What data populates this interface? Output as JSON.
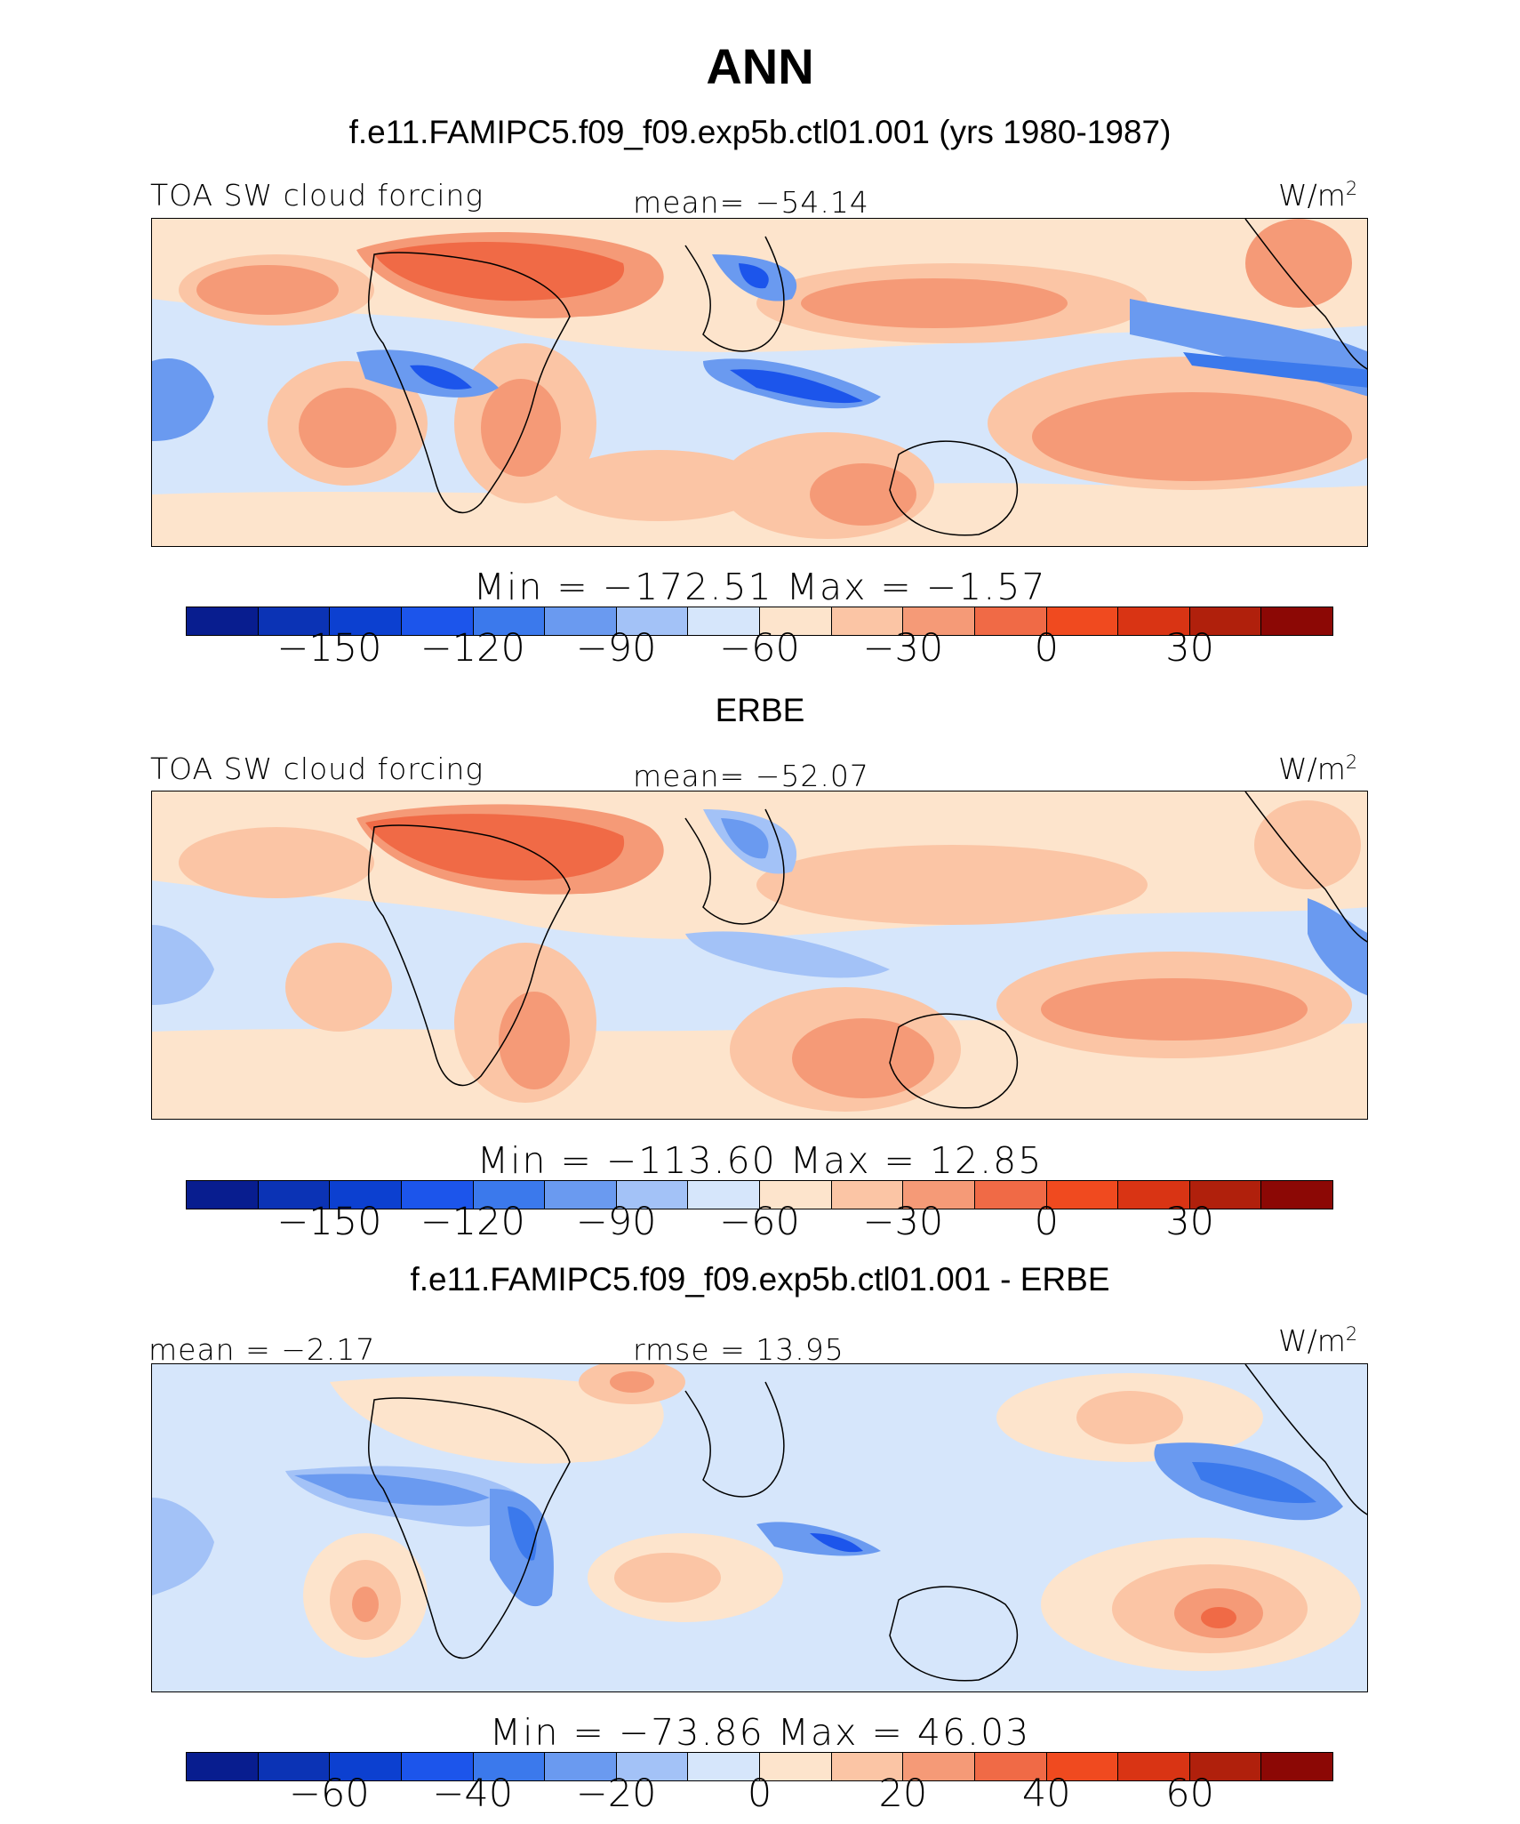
{
  "title": "ANN",
  "palette": [
    "#081d8f",
    "#0b33b5",
    "#0c40d0",
    "#1c55eb",
    "#3b79ec",
    "#6a9af0",
    "#a3c2f7",
    "#d6e6fb",
    "#fde4cc",
    "#fbc5a5",
    "#f59a77",
    "#f06a46",
    "#f04a1f",
    "#d93414",
    "#b0200c",
    "#8c0805"
  ],
  "panels": [
    {
      "heading": "f.e11.FAMIPC5.f09_f09.exp5b.ctl01.001 (yrs 1980-1987)",
      "left_label": "TOA SW cloud forcing",
      "mid_label": "mean= −54.14",
      "unit": "W/m",
      "unit_sup": "2",
      "minmax": "Min = −172.51 Max = −1.57",
      "ticks": [
        "−150",
        "−120",
        "−90",
        "−60",
        "−30",
        "0",
        "30"
      ]
    },
    {
      "heading": "ERBE",
      "left_label": "TOA SW cloud forcing",
      "mid_label": "mean= −52.07",
      "unit": "W/m",
      "unit_sup": "2",
      "minmax": "Min = −113.60 Max = 12.85",
      "ticks": [
        "−150",
        "−120",
        "−90",
        "−60",
        "−30",
        "0",
        "30"
      ]
    },
    {
      "heading": "f.e11.FAMIPC5.f09_f09.exp5b.ctl01.001 - ERBE",
      "left_label": "mean = −2.17",
      "mid_label": "rmse = 13.95",
      "unit": "W/m",
      "unit_sup": "2",
      "minmax": "Min = −73.86 Max = 46.03",
      "ticks": [
        "−60",
        "−40",
        "−20",
        "0",
        "20",
        "40",
        "60"
      ]
    }
  ],
  "chart_data": [
    {
      "type": "heatmap",
      "title": "f.e11.FAMIPC5.f09_f09.exp5b.ctl01.001 (yrs 1980-1987)",
      "variable": "TOA SW cloud forcing",
      "units": "W/m2",
      "mean": -54.14,
      "min": -172.51,
      "max": -1.57,
      "colorbar_levels": [
        -165,
        -150,
        -135,
        -120,
        -105,
        -90,
        -75,
        -60,
        -45,
        -30,
        -15,
        0,
        15,
        30,
        45
      ],
      "colorbar_tick_labels": [
        -150,
        -120,
        -90,
        -60,
        -30,
        0,
        30
      ]
    },
    {
      "type": "heatmap",
      "title": "ERBE",
      "variable": "TOA SW cloud forcing",
      "units": "W/m2",
      "mean": -52.07,
      "min": -113.6,
      "max": 12.85,
      "colorbar_levels": [
        -165,
        -150,
        -135,
        -120,
        -105,
        -90,
        -75,
        -60,
        -45,
        -30,
        -15,
        0,
        15,
        30,
        45
      ],
      "colorbar_tick_labels": [
        -150,
        -120,
        -90,
        -60,
        -30,
        0,
        30
      ]
    },
    {
      "type": "heatmap",
      "title": "f.e11.FAMIPC5.f09_f09.exp5b.ctl01.001 - ERBE",
      "units": "W/m2",
      "mean": -2.17,
      "rmse": 13.95,
      "min": -73.86,
      "max": 46.03,
      "colorbar_levels": [
        -70,
        -60,
        -50,
        -40,
        -30,
        -20,
        -10,
        0,
        10,
        20,
        30,
        40,
        50,
        60,
        70
      ],
      "colorbar_tick_labels": [
        -60,
        -40,
        -20,
        0,
        20,
        40,
        60
      ]
    }
  ]
}
